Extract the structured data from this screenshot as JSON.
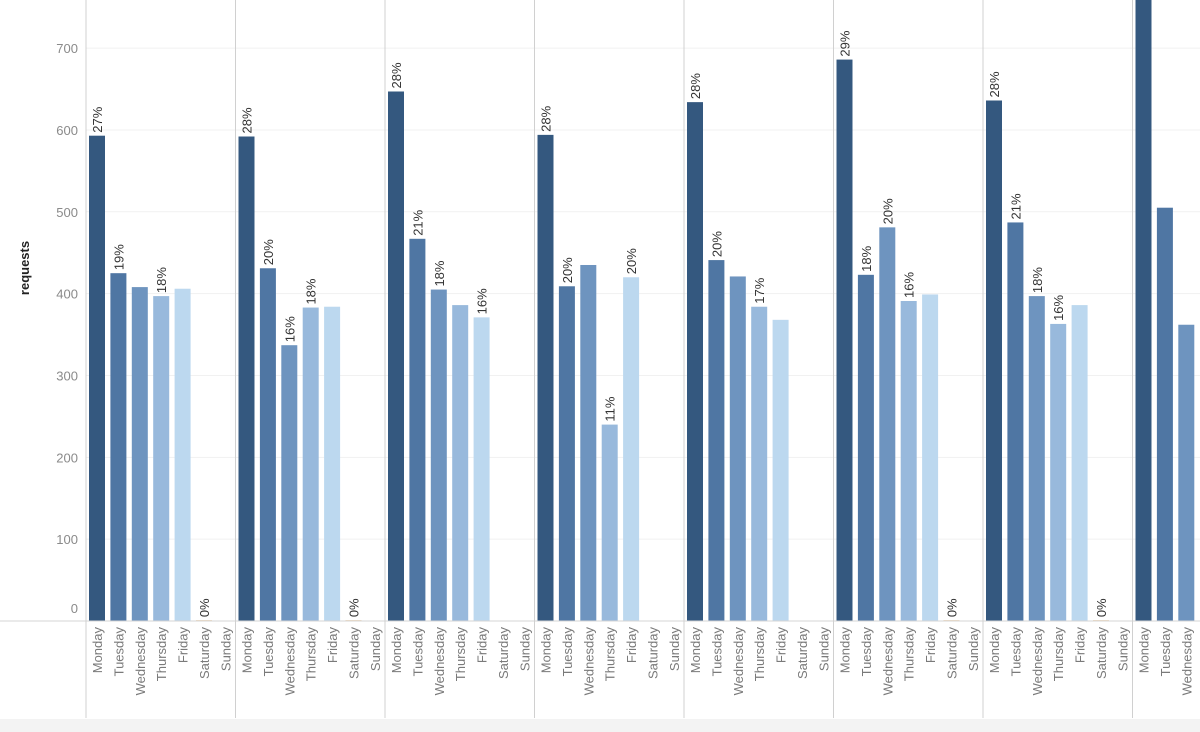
{
  "chart_data": {
    "type": "bar",
    "ylabel": "requests",
    "ylim": [
      0,
      760
    ],
    "yticks": [
      0,
      100,
      200,
      300,
      400,
      500,
      600,
      700
    ],
    "grid": true,
    "categories": [
      "Monday",
      "Tuesday",
      "Wednesday",
      "Thursday",
      "Friday",
      "Saturday",
      "Sunday"
    ],
    "colors": [
      "#34587f",
      "#4f76a3",
      "#6e94bf",
      "#98b9dc",
      "#bcd8ef",
      "#f0c79a",
      "#f0c79a"
    ],
    "panels": [
      {
        "values": [
          593,
          425,
          408,
          397,
          406,
          1,
          0
        ],
        "labels": [
          "27%",
          "19%",
          null,
          "18%",
          null,
          "0%",
          null
        ]
      },
      {
        "values": [
          592,
          431,
          337,
          383,
          384,
          1,
          0
        ],
        "labels": [
          "28%",
          "20%",
          "16%",
          "18%",
          null,
          "0%",
          null
        ]
      },
      {
        "values": [
          647,
          467,
          405,
          386,
          371,
          0,
          0
        ],
        "labels": [
          "28%",
          "21%",
          "18%",
          null,
          "16%",
          null,
          null
        ]
      },
      {
        "values": [
          594,
          409,
          435,
          240,
          420,
          0,
          0
        ],
        "labels": [
          "28%",
          "20%",
          null,
          "11%",
          "20%",
          null,
          null
        ]
      },
      {
        "values": [
          634,
          441,
          421,
          384,
          368,
          0,
          0
        ],
        "labels": [
          "28%",
          "20%",
          null,
          "17%",
          null,
          null,
          null
        ]
      },
      {
        "values": [
          686,
          423,
          481,
          391,
          399,
          1,
          0
        ],
        "labels": [
          "29%",
          "18%",
          "20%",
          "16%",
          null,
          "0%",
          null
        ]
      },
      {
        "values": [
          636,
          487,
          397,
          363,
          386,
          1,
          0
        ],
        "labels": [
          "28%",
          "21%",
          "18%",
          "16%",
          null,
          "0%",
          null
        ]
      },
      {
        "values": [
          760,
          505,
          362
        ],
        "categories": [
          "Monday",
          "Tuesday",
          "Wednesday"
        ],
        "labels": [
          null,
          null,
          null
        ]
      }
    ]
  }
}
